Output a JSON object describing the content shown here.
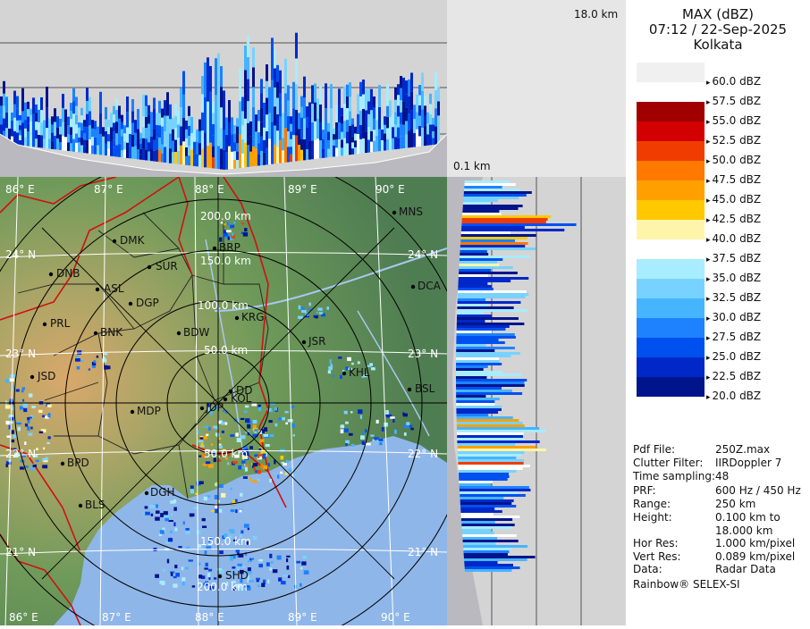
{
  "header": {
    "product": "MAX (dBZ)",
    "datetime": "07:12 / 22-Sep-2025",
    "station": "Kolkata"
  },
  "section": {
    "top_height_label": "18.0 km",
    "bottom_height_label": "0.1 km"
  },
  "legend": {
    "entries": [
      {
        "label": "60.0 dBZ",
        "color": "#f0f0f0"
      },
      {
        "label": "57.5 dBZ",
        "color": "#ffffff"
      },
      {
        "label": "55.0 dBZ",
        "color": "#a00000"
      },
      {
        "label": "52.5 dBZ",
        "color": "#d20000"
      },
      {
        "label": "50.0 dBZ",
        "color": "#f03c00"
      },
      {
        "label": "47.5 dBZ",
        "color": "#ff7800"
      },
      {
        "label": "45.0 dBZ",
        "color": "#ffa000"
      },
      {
        "label": "42.5 dBZ",
        "color": "#ffc800"
      },
      {
        "label": "40.0 dBZ",
        "color": "#fff5aa"
      },
      {
        "label": "37.5 dBZ",
        "color": "#ffffff"
      },
      {
        "label": "35.0 dBZ",
        "color": "#a8ecff"
      },
      {
        "label": "32.5 dBZ",
        "color": "#78d2ff"
      },
      {
        "label": "30.0 dBZ",
        "color": "#46b4ff"
      },
      {
        "label": "27.5 dBZ",
        "color": "#1e82ff"
      },
      {
        "label": "25.0 dBZ",
        "color": "#0050f0"
      },
      {
        "label": "22.5 dBZ",
        "color": "#0028c8"
      },
      {
        "label": "20.0 dBZ",
        "color": "#00148c"
      }
    ]
  },
  "info": [
    {
      "key": "Pdf File:",
      "value": "250Z.max"
    },
    {
      "key": "Clutter Filter:",
      "value": "IIRDoppler 7"
    },
    {
      "key": "Time sampling:",
      "value": "48"
    },
    {
      "key": "PRF:",
      "value": "600 Hz / 450 Hz"
    },
    {
      "key": "Range:",
      "value": "250 km"
    },
    {
      "key": "Height:",
      "value": "0.100 km to"
    },
    {
      "key": "",
      "value": "18.000 km"
    },
    {
      "key": "Hor Res:",
      "value": "1.000 km/pixel"
    },
    {
      "key": "Vert Res:",
      "value": "0.089 km/pixel"
    },
    {
      "key": "Data:",
      "value": "Radar Data"
    }
  ],
  "credit": "Rainbow® SELEX-SI",
  "map": {
    "lon_labels": [
      "86° E",
      "87° E",
      "88° E",
      "89° E",
      "90° E"
    ],
    "lat_labels": [
      "24° N",
      "23° N",
      "22° N",
      "21° N"
    ],
    "range_rings": [
      "50.0 km",
      "100.0 km",
      "150.0 km",
      "200.0 km"
    ],
    "cities": [
      {
        "name": "MNS"
      },
      {
        "name": "DMK"
      },
      {
        "name": "BRP"
      },
      {
        "name": "SUR"
      },
      {
        "name": "DNB"
      },
      {
        "name": "ASL"
      },
      {
        "name": "DGP"
      },
      {
        "name": "DCA"
      },
      {
        "name": "KRG"
      },
      {
        "name": "PRL"
      },
      {
        "name": "BNK"
      },
      {
        "name": "BDW"
      },
      {
        "name": "JSR"
      },
      {
        "name": "KHL"
      },
      {
        "name": "JSD"
      },
      {
        "name": "DD"
      },
      {
        "name": "KOL"
      },
      {
        "name": "BSL"
      },
      {
        "name": "MDP"
      },
      {
        "name": "JDP"
      },
      {
        "name": "BPD"
      },
      {
        "name": "DGH"
      },
      {
        "name": "BLS"
      },
      {
        "name": "SHD"
      }
    ]
  },
  "colors": {
    "panel_bg": "#d4d4d4",
    "land": "#6f9a5a",
    "sea": "#8fb6e8",
    "boundary": "#d01010"
  }
}
